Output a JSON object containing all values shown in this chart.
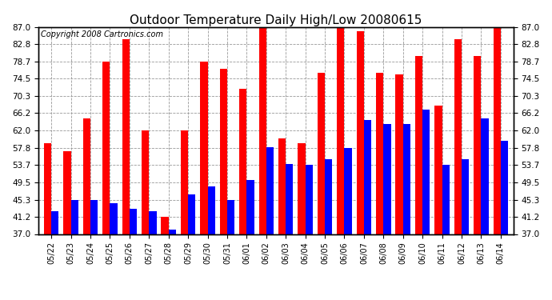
{
  "title": "Outdoor Temperature Daily High/Low 20080615",
  "copyright": "Copyright 2008 Cartronics.com",
  "dates": [
    "05/22",
    "05/23",
    "05/24",
    "05/25",
    "05/26",
    "05/27",
    "05/28",
    "05/29",
    "05/30",
    "05/31",
    "06/01",
    "06/02",
    "06/03",
    "06/04",
    "06/05",
    "06/06",
    "06/07",
    "06/08",
    "06/09",
    "06/10",
    "06/11",
    "06/12",
    "06/13",
    "06/14"
  ],
  "highs": [
    59.0,
    57.0,
    65.0,
    78.7,
    84.0,
    62.0,
    41.2,
    62.0,
    78.7,
    77.0,
    72.0,
    87.0,
    60.0,
    59.0,
    76.0,
    87.0,
    86.0,
    76.0,
    75.5,
    80.0,
    68.0,
    84.0,
    80.0,
    87.0
  ],
  "lows": [
    42.5,
    45.3,
    45.3,
    44.5,
    43.0,
    42.5,
    38.0,
    46.5,
    48.5,
    45.3,
    50.0,
    58.0,
    54.0,
    53.7,
    55.0,
    57.8,
    64.5,
    63.5,
    63.5,
    67.0,
    53.7,
    55.0,
    65.0,
    59.5
  ],
  "high_color": "#ff0000",
  "low_color": "#0000ff",
  "bg_color": "#ffffff",
  "grid_color": "#999999",
  "ymin": 37.0,
  "ymax": 87.0,
  "yticks": [
    37.0,
    41.2,
    45.3,
    49.5,
    53.7,
    57.8,
    62.0,
    66.2,
    70.3,
    74.5,
    78.7,
    82.8,
    87.0
  ],
  "title_fontsize": 11,
  "copyright_fontsize": 7,
  "bar_width": 0.38
}
